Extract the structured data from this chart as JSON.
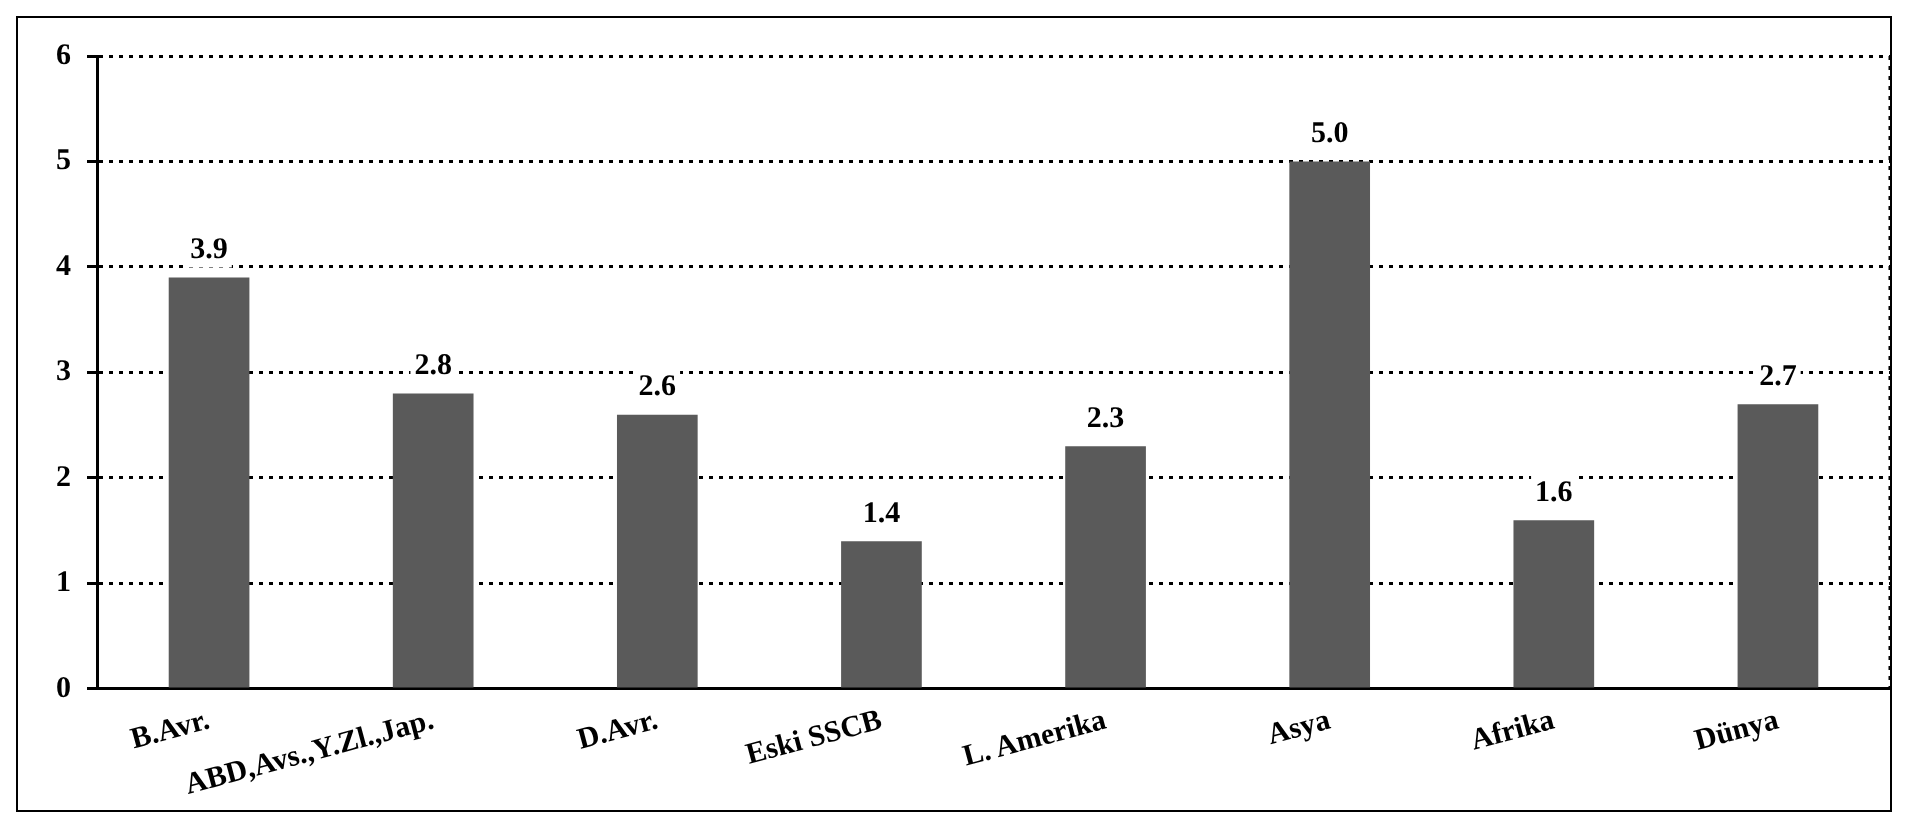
{
  "chart_data": {
    "type": "bar",
    "categories": [
      "B.Avr.",
      "ABD,Avs.,Y.Zl.,Jap.",
      "D.Avr.",
      "Eski SSCB",
      "L. Amerika",
      "Asya",
      "Afrika",
      "Dünya"
    ],
    "values": [
      3.9,
      2.8,
      2.6,
      1.4,
      2.3,
      5.0,
      1.6,
      2.7
    ],
    "value_labels": [
      "3.9",
      "2.8",
      "2.6",
      "1.4",
      "2.3",
      "5.0",
      "1.6",
      "2.7"
    ],
    "color": "#5a5a5a",
    "ylim": [
      0,
      6
    ],
    "yticks": [
      0,
      1,
      2,
      3,
      4,
      5,
      6
    ],
    "grid": "y",
    "legend": false
  }
}
